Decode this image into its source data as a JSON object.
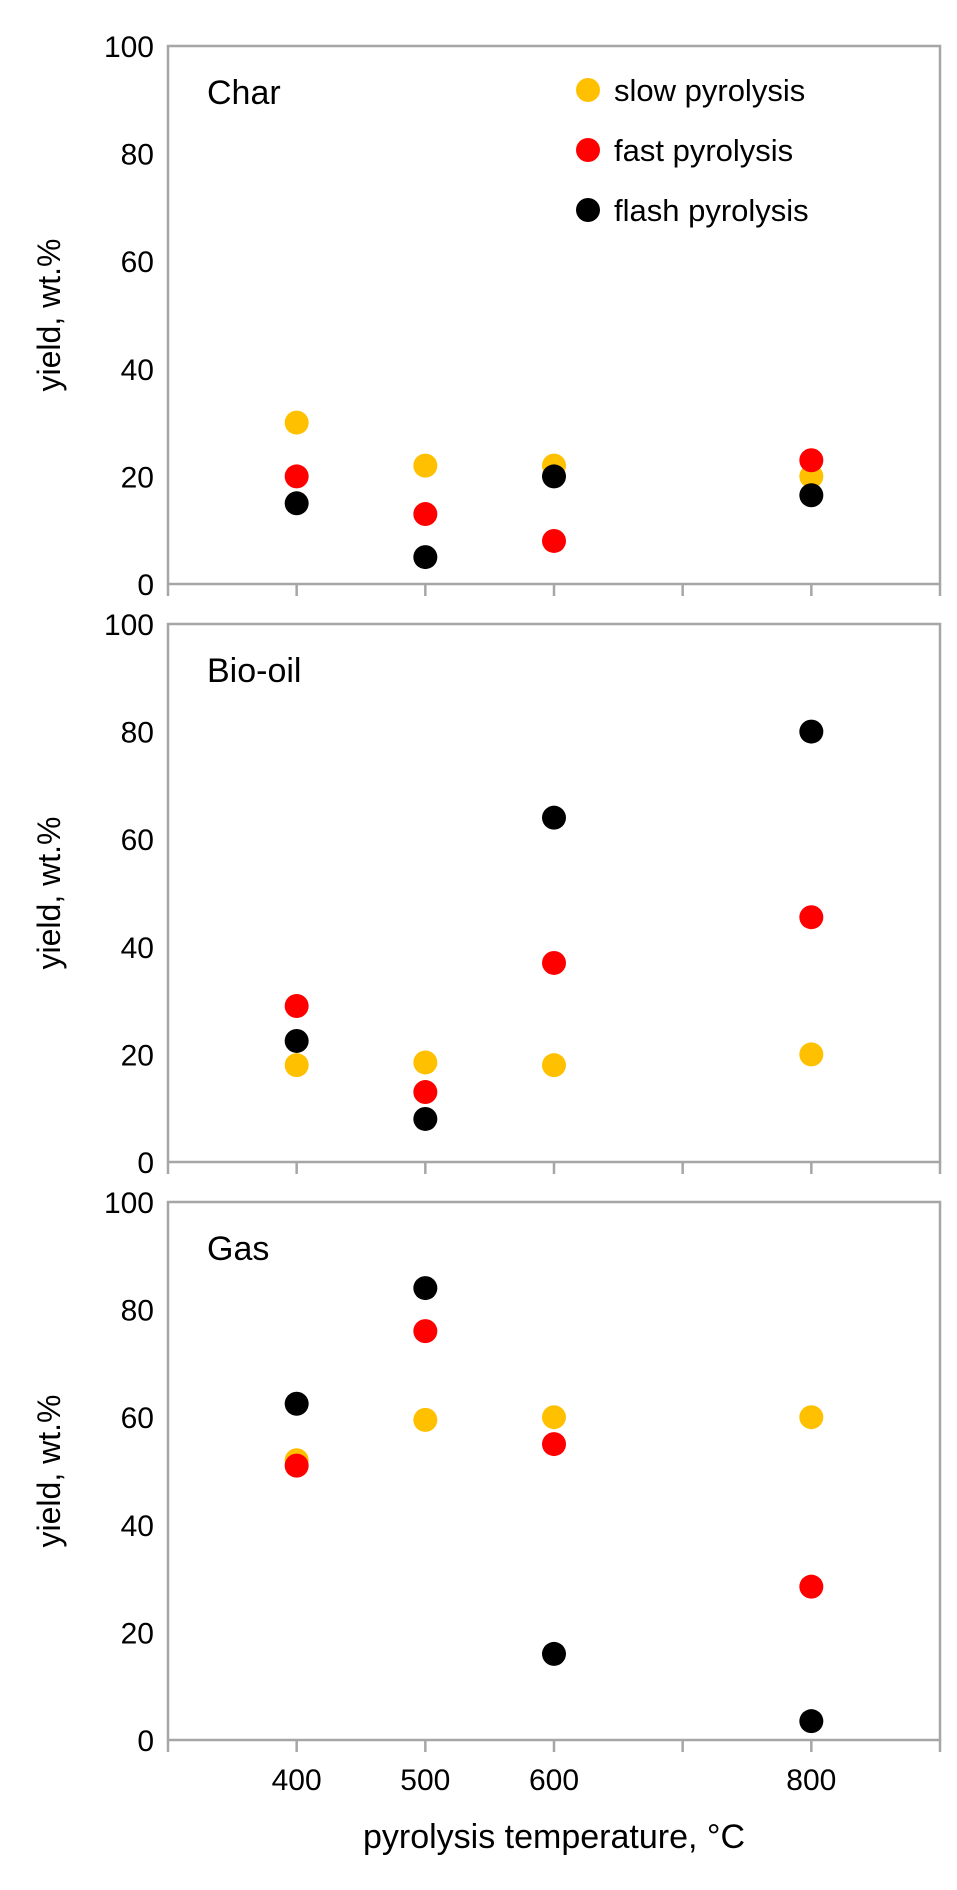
{
  "chart_data": {
    "type": "scatter",
    "xlabel": "pyrolysis temperature, °C",
    "ylabel": "yield, wt.%",
    "xlim": [
      300,
      900
    ],
    "ylim": [
      0,
      100
    ],
    "x_ticks": [
      400,
      500,
      600,
      800
    ],
    "y_ticks": [
      0,
      20,
      40,
      60,
      80,
      100
    ],
    "legend": {
      "position": "top-right",
      "entries": [
        {
          "name": "slow pyrolysis",
          "color": "#FFC000"
        },
        {
          "name": "fast pyrolysis",
          "color": "#FF0000"
        },
        {
          "name": "flash pyrolysis",
          "color": "#000000"
        }
      ]
    },
    "panels": [
      {
        "title": "Char",
        "ylabel": "yield, wt.%",
        "series": [
          {
            "name": "slow pyrolysis",
            "color": "#FFC000",
            "x": [
              400,
              500,
              600,
              800
            ],
            "y": [
              30,
              22,
              22,
              20
            ]
          },
          {
            "name": "fast pyrolysis",
            "color": "#FF0000",
            "x": [
              400,
              500,
              600,
              800
            ],
            "y": [
              20,
              13,
              8,
              23
            ]
          },
          {
            "name": "flash pyrolysis",
            "color": "#000000",
            "x": [
              400,
              500,
              600,
              800
            ],
            "y": [
              15,
              5,
              20,
              16.5
            ]
          }
        ]
      },
      {
        "title": "Bio-oil",
        "ylabel": "yield,  wt.%",
        "series": [
          {
            "name": "slow pyrolysis",
            "color": "#FFC000",
            "x": [
              400,
              500,
              600,
              800
            ],
            "y": [
              18,
              18.5,
              18,
              20
            ]
          },
          {
            "name": "fast pyrolysis",
            "color": "#FF0000",
            "x": [
              400,
              500,
              600,
              800
            ],
            "y": [
              29,
              13,
              37,
              45.5
            ]
          },
          {
            "name": "flash pyrolysis",
            "color": "#000000",
            "x": [
              400,
              500,
              600,
              800
            ],
            "y": [
              22.5,
              8,
              64,
              80
            ]
          }
        ]
      },
      {
        "title": "Gas",
        "ylabel": "yield, wt.%",
        "xlabel": "pyrolysis temperature, °C",
        "series": [
          {
            "name": "slow pyrolysis",
            "color": "#FFC000",
            "x": [
              400,
              500,
              600,
              800
            ],
            "y": [
              52,
              59.5,
              60,
              60
            ]
          },
          {
            "name": "fast pyrolysis",
            "color": "#FF0000",
            "x": [
              400,
              500,
              600,
              800
            ],
            "y": [
              51,
              76,
              55,
              28.5
            ]
          },
          {
            "name": "flash pyrolysis",
            "color": "#000000",
            "x": [
              400,
              500,
              600,
              800
            ],
            "y": [
              62.5,
              84,
              16,
              3.5
            ]
          }
        ]
      }
    ]
  }
}
